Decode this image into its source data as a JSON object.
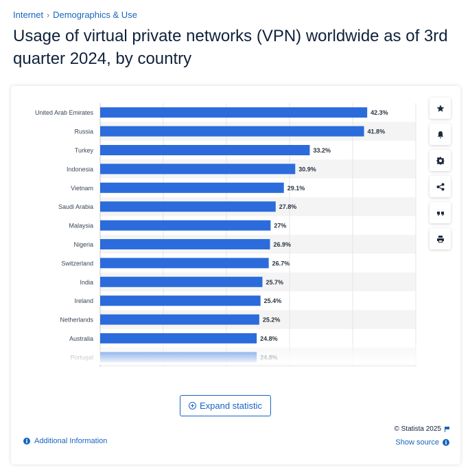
{
  "breadcrumb": {
    "items": [
      "Internet",
      "Demographics & Use"
    ],
    "separator": "›"
  },
  "title": "Usage of virtual private networks (VPN) worldwide as of 3rd quarter 2024, by country",
  "toolbar": {
    "icons": [
      "star-icon",
      "bell-icon",
      "gear-icon",
      "share-icon",
      "quote-icon",
      "print-icon"
    ]
  },
  "expand_label": "Expand statistic",
  "footer": {
    "additional_info": "Additional Information",
    "copyright": "© Statista 2025",
    "show_source": "Show source",
    "info_glyph": "i"
  },
  "colors": {
    "bar": "#2b6bdb",
    "accent": "#1565c0",
    "stripe": "#f4f4f4"
  },
  "chart_data": {
    "type": "bar",
    "orientation": "horizontal",
    "categories": [
      "United Arab Emirates",
      "Russia",
      "Turkey",
      "Indonesia",
      "Vietnam",
      "Saudi Arabia",
      "Malaysia",
      "Nigeria",
      "Switzerland",
      "India",
      "Ireland",
      "Netherlands",
      "Australia",
      "Portugal"
    ],
    "values": [
      42.3,
      41.8,
      33.2,
      30.9,
      29.1,
      27.8,
      27,
      26.9,
      26.7,
      25.7,
      25.4,
      25.2,
      24.8,
      24.8
    ],
    "value_labels": [
      "42.3%",
      "41.8%",
      "33.2%",
      "30.9%",
      "29.1%",
      "27.8%",
      "27%",
      "26.9%",
      "26.7%",
      "25.7%",
      "25.4%",
      "25.2%",
      "24.8%",
      "24.8%"
    ],
    "xlim": [
      0,
      50
    ],
    "grid": true,
    "unit": "%"
  }
}
